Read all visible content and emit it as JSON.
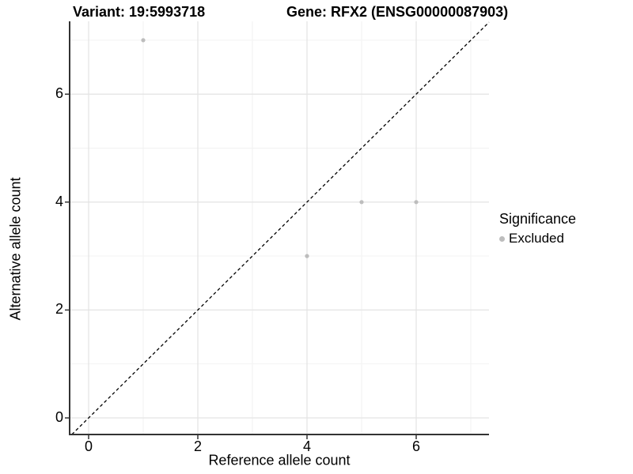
{
  "header": {
    "variant_title": "Variant: 19:5993718",
    "gene_title": "Gene: RFX2 (ENSG00000087903)"
  },
  "legend": {
    "title": "Significance",
    "entries": [
      {
        "label": "Excluded",
        "color": "#bdbdbd"
      }
    ]
  },
  "chart_data": {
    "type": "scatter",
    "title": "Variant: 19:5993718 | Gene: RFX2 (ENSG00000087903)",
    "xlabel": "Reference allele count",
    "ylabel": "Alternative allele count",
    "xlim": [
      -0.35,
      7.35
    ],
    "ylim": [
      -0.35,
      7.35
    ],
    "x_ticks": [
      0,
      2,
      4,
      6
    ],
    "y_ticks": [
      0,
      2,
      4,
      6
    ],
    "x_minor_ticks": [
      1,
      3,
      5,
      7
    ],
    "y_minor_ticks": [
      1,
      3,
      5,
      7
    ],
    "grid": true,
    "legend_position": "right",
    "series": [
      {
        "name": "Excluded",
        "color": "#bdbdbd",
        "points": [
          {
            "x": 1,
            "y": 7
          },
          {
            "x": 4,
            "y": 3
          },
          {
            "x": 5,
            "y": 4
          },
          {
            "x": 6,
            "y": 4
          }
        ]
      }
    ],
    "reference_line": {
      "type": "identity",
      "slope": 1,
      "intercept": 0,
      "style": "dashed",
      "color": "#000000"
    }
  },
  "colors": {
    "background": "#ffffff",
    "axis_line": "#333333",
    "grid_major": "#e4e4e4",
    "grid_minor": "#f1f1f1",
    "tick_mark": "#333333",
    "text": "#000000"
  }
}
